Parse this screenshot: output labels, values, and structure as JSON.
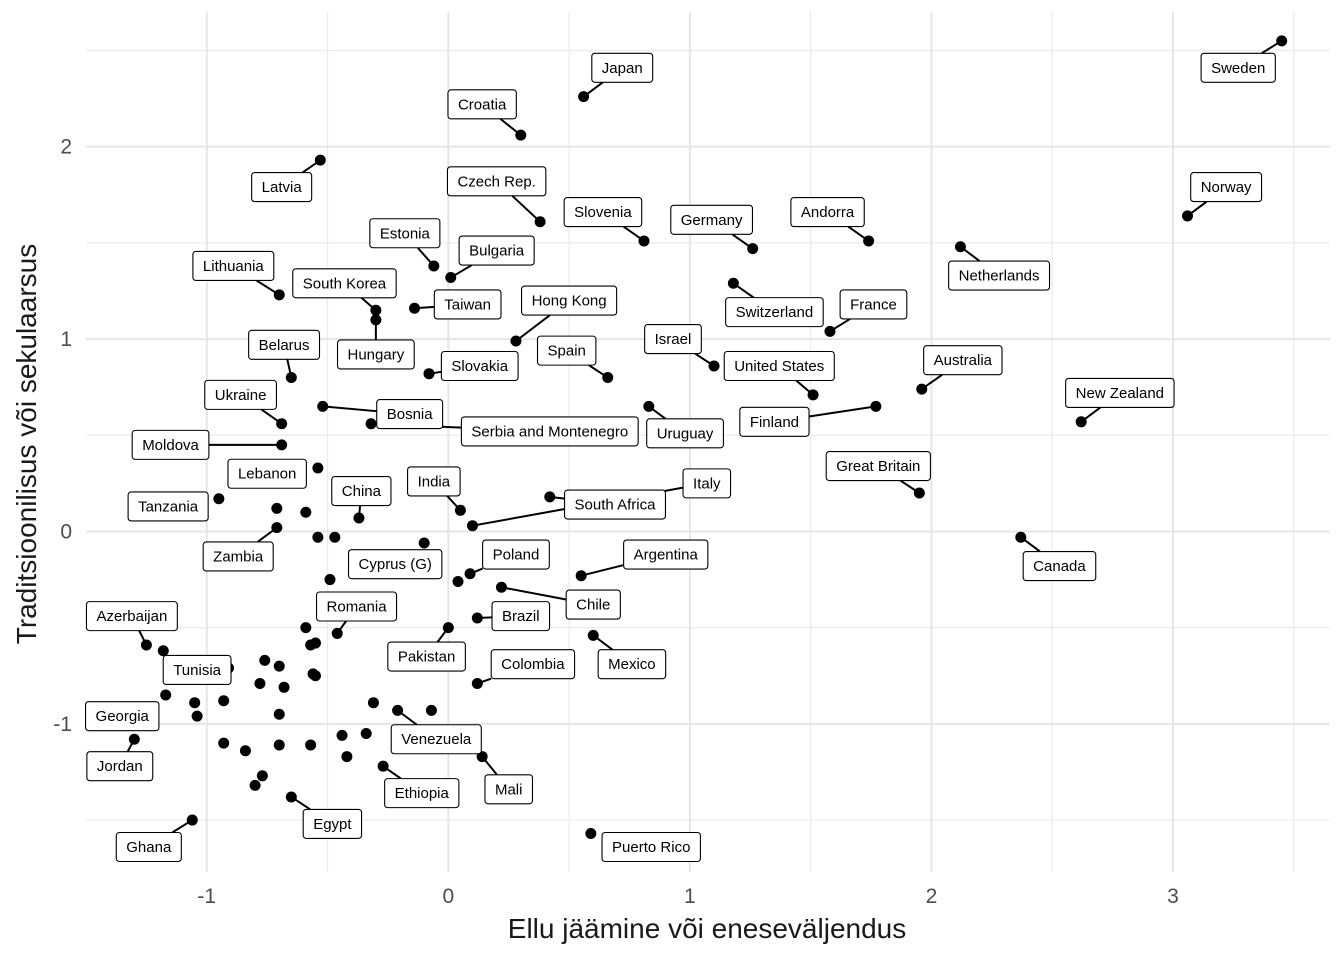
{
  "chart_data": {
    "type": "scatter",
    "xlabel": "Ellu jäämine või eneseväljendus",
    "ylabel": "Traditsioonilisus või sekulaarsus",
    "xlim": [
      -1.5,
      3.65
    ],
    "ylim": [
      -1.77,
      2.7
    ],
    "x_ticks": [
      -1,
      0,
      1,
      2,
      3
    ],
    "y_ticks": [
      -1,
      0,
      1,
      2
    ],
    "x_tick_labels": [
      "-1",
      "0",
      "1",
      "2",
      "3"
    ],
    "y_tick_labels": [
      "-1",
      "0",
      "1",
      "2"
    ],
    "grid": true,
    "point_color": "#000000",
    "labeled_points": [
      {
        "label": "Japan",
        "x": 0.56,
        "y": 2.26,
        "lx": 0.72,
        "ly": 2.41
      },
      {
        "label": "Sweden",
        "x": 3.45,
        "y": 2.55,
        "lx": 3.27,
        "ly": 2.41
      },
      {
        "label": "Croatia",
        "x": 0.3,
        "y": 2.06,
        "lx": 0.14,
        "ly": 2.22
      },
      {
        "label": "Latvia",
        "x": -0.53,
        "y": 1.93,
        "lx": -0.69,
        "ly": 1.79
      },
      {
        "label": "Czech Rep.",
        "x": 0.38,
        "y": 1.61,
        "lx": 0.2,
        "ly": 1.82
      },
      {
        "label": "Slovenia",
        "x": 0.81,
        "y": 1.51,
        "lx": 0.64,
        "ly": 1.66
      },
      {
        "label": "Germany",
        "x": 1.26,
        "y": 1.47,
        "lx": 1.09,
        "ly": 1.62
      },
      {
        "label": "Andorra",
        "x": 1.74,
        "y": 1.51,
        "lx": 1.57,
        "ly": 1.66
      },
      {
        "label": "Norway",
        "x": 3.06,
        "y": 1.64,
        "lx": 3.22,
        "ly": 1.79
      },
      {
        "label": "Estonia",
        "x": -0.06,
        "y": 1.38,
        "lx": -0.18,
        "ly": 1.55
      },
      {
        "label": "Bulgaria",
        "x": 0.01,
        "y": 1.32,
        "lx": 0.2,
        "ly": 1.46
      },
      {
        "label": "Netherlands",
        "x": 2.12,
        "y": 1.48,
        "lx": 2.28,
        "ly": 1.33
      },
      {
        "label": "Lithuania",
        "x": -0.7,
        "y": 1.23,
        "lx": -0.89,
        "ly": 1.38
      },
      {
        "label": "South Korea",
        "x": -0.3,
        "y": 1.15,
        "lx": -0.43,
        "ly": 1.29
      },
      {
        "label": "Taiwan",
        "x": -0.14,
        "y": 1.16,
        "lx": 0.08,
        "ly": 1.18
      },
      {
        "label": "Hong Kong",
        "x": 0.28,
        "y": 0.99,
        "lx": 0.5,
        "ly": 1.2
      },
      {
        "label": "Switzerland",
        "x": 1.18,
        "y": 1.29,
        "lx": 1.35,
        "ly": 1.14
      },
      {
        "label": "France",
        "x": 1.58,
        "y": 1.04,
        "lx": 1.76,
        "ly": 1.18
      },
      {
        "label": "Israel",
        "x": 1.1,
        "y": 0.86,
        "lx": 0.93,
        "ly": 1.0
      },
      {
        "label": "Belarus",
        "x": -0.65,
        "y": 0.8,
        "lx": -0.68,
        "ly": 0.97
      },
      {
        "label": "Hungary",
        "x": -0.3,
        "y": 1.1,
        "lx": -0.3,
        "ly": 0.92
      },
      {
        "label": "Spain",
        "x": 0.66,
        "y": 0.8,
        "lx": 0.49,
        "ly": 0.94
      },
      {
        "label": "Slovakia",
        "x": -0.08,
        "y": 0.82,
        "lx": 0.13,
        "ly": 0.86
      },
      {
        "label": "United States",
        "x": 1.51,
        "y": 0.71,
        "lx": 1.37,
        "ly": 0.86
      },
      {
        "label": "Australia",
        "x": 1.96,
        "y": 0.74,
        "lx": 2.13,
        "ly": 0.89
      },
      {
        "label": "Ukraine",
        "x": -0.69,
        "y": 0.56,
        "lx": -0.86,
        "ly": 0.71
      },
      {
        "label": "New Zealand",
        "x": 2.62,
        "y": 0.57,
        "lx": 2.78,
        "ly": 0.72
      },
      {
        "label": "Bosnia",
        "x": -0.52,
        "y": 0.65,
        "lx": -0.16,
        "ly": 0.61
      },
      {
        "label": "Serbia and Montenegro",
        "x": -0.32,
        "y": 0.56,
        "lx": 0.42,
        "ly": 0.52
      },
      {
        "label": "Uruguay",
        "x": 0.83,
        "y": 0.65,
        "lx": 0.98,
        "ly": 0.51
      },
      {
        "label": "Finland",
        "x": 1.77,
        "y": 0.65,
        "lx": 1.35,
        "ly": 0.57
      },
      {
        "label": "Moldova",
        "x": -0.69,
        "y": 0.45,
        "lx": -1.15,
        "ly": 0.45
      },
      {
        "label": "Lebanon",
        "x": -0.54,
        "y": 0.33,
        "lx": -0.75,
        "ly": 0.3
      },
      {
        "label": "Great Britain",
        "x": 1.95,
        "y": 0.2,
        "lx": 1.78,
        "ly": 0.34
      },
      {
        "label": "China",
        "x": -0.37,
        "y": 0.07,
        "lx": -0.36,
        "ly": 0.21
      },
      {
        "label": "India",
        "x": 0.05,
        "y": 0.11,
        "lx": -0.06,
        "ly": 0.26
      },
      {
        "label": "Italy",
        "x": 0.1,
        "y": 0.03,
        "lx": 1.07,
        "ly": 0.25
      },
      {
        "label": "South Africa",
        "x": 0.42,
        "y": 0.18,
        "lx": 0.69,
        "ly": 0.14
      },
      {
        "label": "Tanzania",
        "x": -0.95,
        "y": 0.17,
        "lx": -1.16,
        "ly": 0.13
      },
      {
        "label": "Zambia",
        "x": -0.71,
        "y": 0.02,
        "lx": -0.87,
        "ly": -0.13
      },
      {
        "label": "Poland",
        "x": 0.09,
        "y": -0.22,
        "lx": 0.28,
        "ly": -0.12
      },
      {
        "label": "Argentina",
        "x": 0.55,
        "y": -0.23,
        "lx": 0.9,
        "ly": -0.12
      },
      {
        "label": "Cyprus (G)",
        "x": -0.1,
        "y": -0.06,
        "lx": -0.22,
        "ly": -0.17
      },
      {
        "label": "Canada",
        "x": 2.37,
        "y": -0.03,
        "lx": 2.53,
        "ly": -0.18
      },
      {
        "label": "Chile",
        "x": 0.22,
        "y": -0.29,
        "lx": 0.6,
        "ly": -0.38
      },
      {
        "label": "Romania",
        "x": -0.46,
        "y": -0.53,
        "lx": -0.38,
        "ly": -0.39
      },
      {
        "label": "Brazil",
        "x": 0.12,
        "y": -0.45,
        "lx": 0.3,
        "ly": -0.44
      },
      {
        "label": "Azerbaijan",
        "x": -1.25,
        "y": -0.59,
        "lx": -1.31,
        "ly": -0.44
      },
      {
        "label": "Mexico",
        "x": 0.6,
        "y": -0.54,
        "lx": 0.76,
        "ly": -0.69
      },
      {
        "label": "Pakistan",
        "x": 0.0,
        "y": -0.5,
        "lx": -0.09,
        "ly": -0.65
      },
      {
        "label": "Colombia",
        "x": 0.12,
        "y": -0.79,
        "lx": 0.35,
        "ly": -0.69
      },
      {
        "label": "Tunisia",
        "x": -0.91,
        "y": -0.71,
        "lx": -1.04,
        "ly": -0.72
      },
      {
        "label": "Georgia",
        "x": -1.17,
        "y": -0.85,
        "lx": -1.35,
        "ly": -0.96
      },
      {
        "label": "Venezuela",
        "x": -0.21,
        "y": -0.93,
        "lx": -0.05,
        "ly": -1.08
      },
      {
        "label": "Jordan",
        "x": -1.3,
        "y": -1.08,
        "lx": -1.36,
        "ly": -1.22
      },
      {
        "label": "Mali",
        "x": 0.14,
        "y": -1.17,
        "lx": 0.25,
        "ly": -1.34
      },
      {
        "label": "Ethiopia",
        "x": -0.27,
        "y": -1.22,
        "lx": -0.11,
        "ly": -1.36
      },
      {
        "label": "Egypt",
        "x": -0.65,
        "y": -1.38,
        "lx": -0.48,
        "ly": -1.52
      },
      {
        "label": "Ghana",
        "x": -1.06,
        "y": -1.5,
        "lx": -1.24,
        "ly": -1.64
      },
      {
        "label": "Puerto Rico",
        "x": 0.59,
        "y": -1.57,
        "lx": 0.84,
        "ly": -1.64
      }
    ],
    "unlabeled_points": [
      {
        "x": -0.71,
        "y": 0.12
      },
      {
        "x": -0.59,
        "y": 0.1
      },
      {
        "x": -0.54,
        "y": -0.03
      },
      {
        "x": -0.47,
        "y": -0.03
      },
      {
        "x": -0.49,
        "y": -0.25
      },
      {
        "x": 0.04,
        "y": -0.26
      },
      {
        "x": -0.59,
        "y": -0.5
      },
      {
        "x": -0.57,
        "y": -0.59
      },
      {
        "x": -0.55,
        "y": -0.58
      },
      {
        "x": -0.56,
        "y": -0.74
      },
      {
        "x": -0.55,
        "y": -0.75
      },
      {
        "x": -1.18,
        "y": -0.62
      },
      {
        "x": -0.76,
        "y": -0.67
      },
      {
        "x": -0.7,
        "y": -0.7
      },
      {
        "x": -0.78,
        "y": -0.79
      },
      {
        "x": -0.68,
        "y": -0.81
      },
      {
        "x": -1.05,
        "y": -0.89
      },
      {
        "x": -0.93,
        "y": -0.88
      },
      {
        "x": -1.04,
        "y": -0.96
      },
      {
        "x": -0.7,
        "y": -0.95
      },
      {
        "x": -0.31,
        "y": -0.89
      },
      {
        "x": -0.07,
        "y": -0.93
      },
      {
        "x": -0.93,
        "y": -1.1
      },
      {
        "x": -0.84,
        "y": -1.14
      },
      {
        "x": -0.7,
        "y": -1.11
      },
      {
        "x": -0.57,
        "y": -1.11
      },
      {
        "x": -0.44,
        "y": -1.06
      },
      {
        "x": -0.34,
        "y": -1.05
      },
      {
        "x": -0.42,
        "y": -1.17
      },
      {
        "x": -0.77,
        "y": -1.27
      },
      {
        "x": -0.8,
        "y": -1.32
      }
    ]
  }
}
